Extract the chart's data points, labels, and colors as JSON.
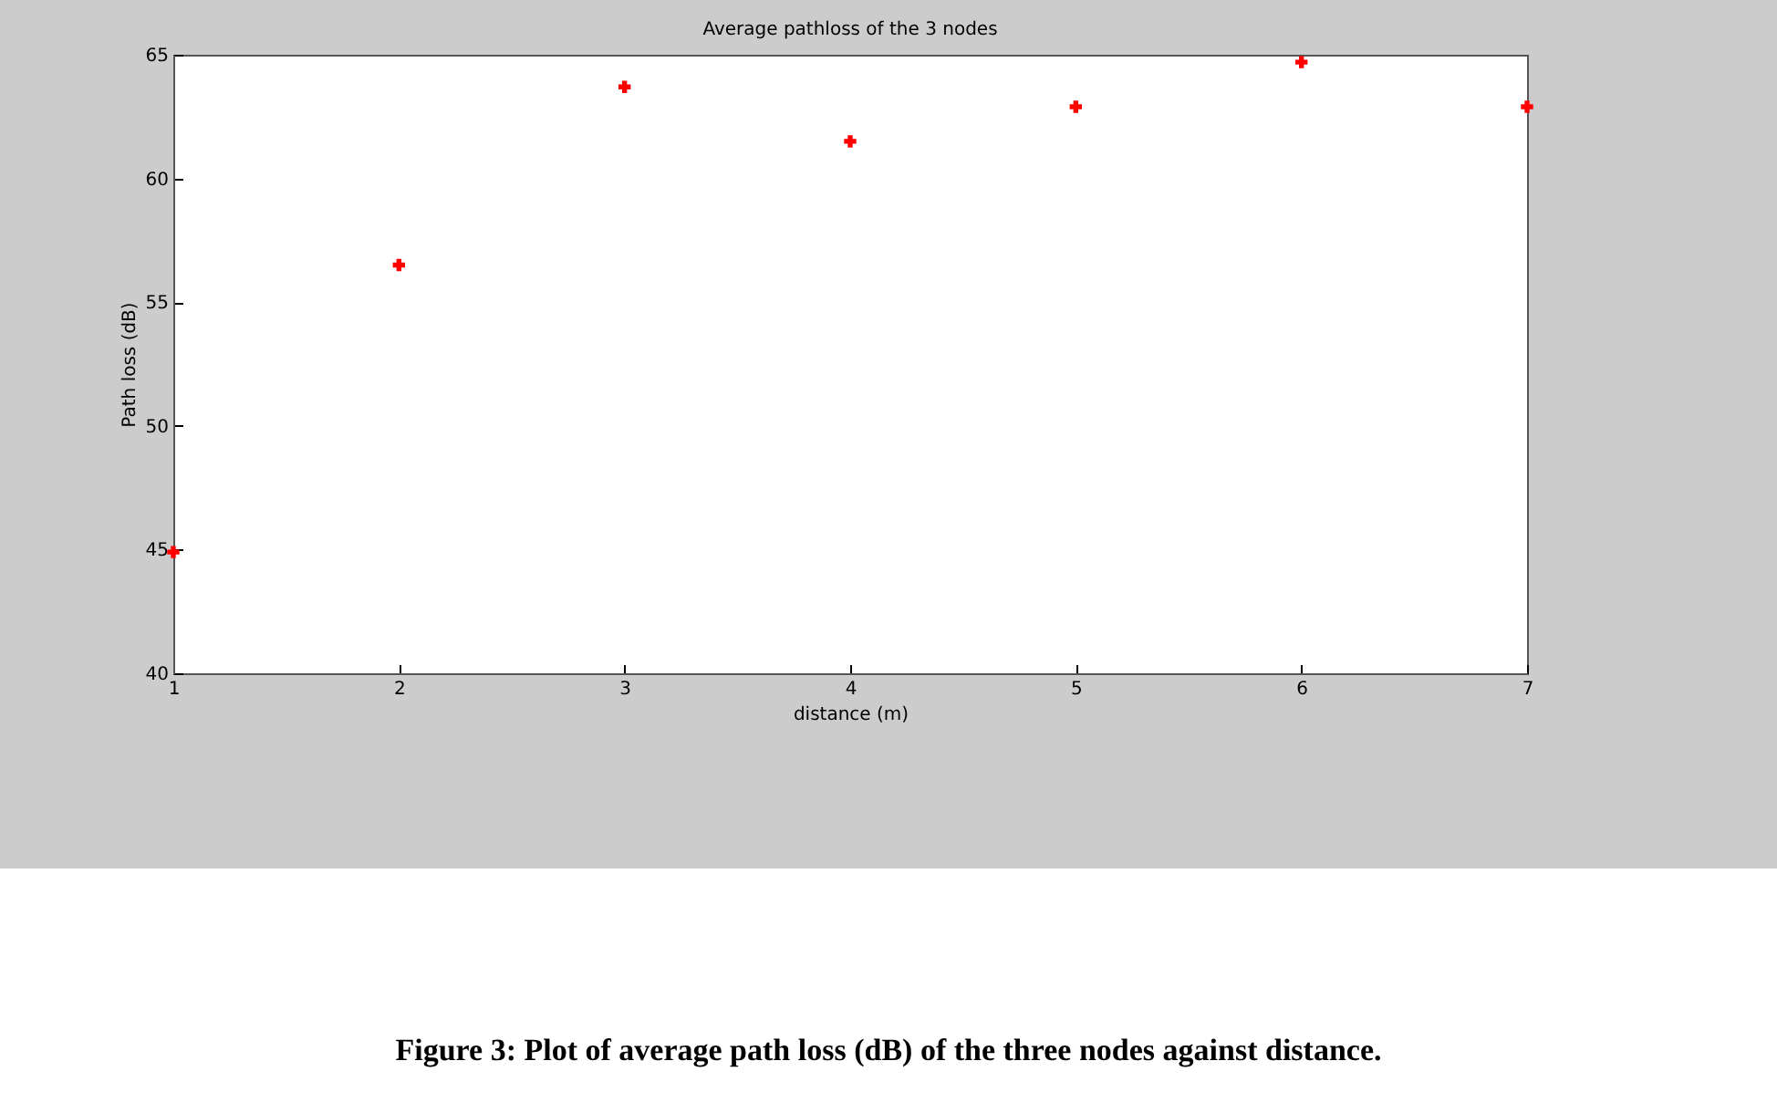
{
  "chart_data": {
    "type": "scatter",
    "title": "Average pathloss of the 3 nodes",
    "xlabel": "distance (m)",
    "ylabel": "Path loss (dB)",
    "annotations": [
      "Figure 3: Plot of average path loss (dB) of the three nodes against distance."
    ],
    "x": [
      1,
      2,
      3,
      4,
      5,
      6,
      7
    ],
    "series": [
      {
        "color": "#ff0000",
        "values": [
          44.9,
          56.5,
          63.7,
          61.5,
          62.9,
          64.7,
          62.9
        ]
      }
    ],
    "xlim": [
      1,
      7
    ],
    "xticks": [
      1,
      2,
      3,
      4,
      5,
      6,
      7
    ],
    "ylim": [
      40,
      65
    ],
    "yticks": [
      40,
      45,
      50,
      55,
      60,
      65
    ],
    "marker": "cross",
    "grid": false,
    "legend": false
  }
}
